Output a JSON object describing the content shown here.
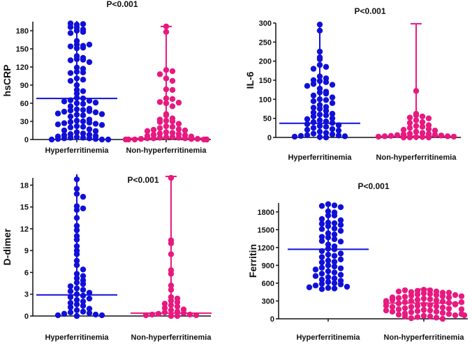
{
  "chart_data": [
    {
      "type": "scatter",
      "title": "P<0.001",
      "ylabel": "hsCRP",
      "ylim": [
        0,
        195
      ],
      "yticks": [
        "0",
        "30",
        "60",
        "90",
        "120",
        "150",
        "180"
      ],
      "yticks_values": [
        0,
        30,
        60,
        90,
        120,
        150,
        180
      ],
      "categories": [
        "Hyperferritinemia",
        "Non-hyperferritinemia"
      ],
      "series": [
        {
          "name": "Hyperferritinemia",
          "color": "#1010d8",
          "median": 68,
          "range": [
            0,
            196
          ],
          "values": [
            185,
            190,
            191,
            192,
            180,
            178,
            182,
            186,
            176,
            163,
            157,
            155,
            151,
            152,
            154,
            157,
            138,
            135,
            133,
            132,
            131,
            128,
            119,
            117,
            112,
            111,
            110,
            101,
            99,
            97,
            90,
            82,
            80,
            76,
            69,
            68,
            65,
            64,
            63,
            61,
            60,
            59,
            55,
            51,
            50,
            49,
            48,
            47,
            46,
            45,
            43,
            42,
            41,
            40,
            38,
            33,
            31,
            30,
            29,
            28,
            27,
            26,
            25,
            24,
            22,
            21,
            20,
            17,
            15,
            14,
            12,
            10,
            9,
            8,
            7,
            6,
            5,
            4,
            3,
            3,
            2,
            2,
            1,
            1,
            0,
            0,
            0
          ]
        },
        {
          "name": "Non-hyperferritinemia",
          "color": "#e8197f",
          "median": 2,
          "range": [
            0,
            187
          ],
          "values": [
            187,
            178,
            115,
            113,
            108,
            101,
            97,
            83,
            82,
            68,
            67,
            62,
            61,
            60,
            55,
            42,
            40,
            35,
            33,
            31,
            30,
            29,
            26,
            22,
            21,
            19,
            17,
            16,
            15,
            14,
            12,
            11,
            10,
            9,
            8,
            7,
            6,
            5,
            4,
            4,
            3,
            3,
            2,
            2,
            2,
            1,
            1,
            1,
            0,
            0,
            0,
            0,
            0,
            0
          ]
        }
      ]
    },
    {
      "type": "scatter",
      "title": "P<0.001",
      "ylabel": "IL-6",
      "ylim": [
        0,
        300
      ],
      "yticks": [
        "0",
        "50",
        "100",
        "150",
        "200",
        "250",
        "300"
      ],
      "yticks_values": [
        0,
        50,
        100,
        150,
        200,
        250,
        300
      ],
      "categories": [
        "Hyperferritinemia",
        "Non-hyperferritinemia"
      ],
      "series": [
        {
          "name": "Hyperferritinemia",
          "color": "#1010d8",
          "median": 37,
          "range": [
            0,
            298
          ],
          "values": [
            296,
            280,
            225,
            210,
            205,
            190,
            185,
            180,
            160,
            155,
            150,
            148,
            145,
            140,
            138,
            135,
            128,
            120,
            118,
            115,
            110,
            105,
            100,
            98,
            95,
            90,
            85,
            80,
            78,
            75,
            70,
            65,
            62,
            60,
            58,
            55,
            50,
            48,
            45,
            42,
            40,
            38,
            35,
            32,
            30,
            28,
            25,
            22,
            20,
            18,
            15,
            12,
            10,
            8,
            6,
            5,
            4,
            3,
            2,
            1,
            0
          ]
        },
        {
          "name": "Non-hyperferritinemia",
          "color": "#e8197f",
          "median": 3,
          "range": [
            0,
            298
          ],
          "values": [
            122,
            62,
            58,
            55,
            52,
            50,
            45,
            40,
            38,
            32,
            30,
            28,
            25,
            22,
            20,
            18,
            15,
            12,
            10,
            9,
            8,
            7,
            6,
            5,
            4,
            3,
            3,
            2,
            2,
            1,
            1,
            0,
            0,
            0
          ]
        }
      ]
    },
    {
      "type": "scatter",
      "title": "P<0.001",
      "ylabel": "D-dimer",
      "ylim": [
        0,
        19
      ],
      "yticks": [
        "0",
        "3",
        "6",
        "9",
        "12",
        "15",
        "18"
      ],
      "yticks_values": [
        0,
        3,
        6,
        9,
        12,
        15,
        18
      ],
      "categories": [
        "Hyperferritinemia",
        "Non-hyperferritinemia"
      ],
      "series": [
        {
          "name": "Hyperferritinemia",
          "color": "#1010d8",
          "median": 2.9,
          "range": [
            0,
            19.5
          ],
          "values": [
            18.8,
            17.5,
            16.8,
            16.4,
            15.1,
            14.8,
            14.6,
            13.5,
            12.4,
            11.8,
            11.0,
            10.5,
            9.6,
            9.0,
            8.5,
            7.6,
            7.0,
            6.4,
            5.8,
            5.5,
            5.2,
            4.9,
            4.6,
            4.4,
            4.1,
            3.8,
            3.6,
            3.4,
            3.2,
            3.0,
            2.8,
            2.6,
            2.4,
            2.2,
            2.0,
            1.8,
            1.6,
            1.4,
            1.2,
            1.0,
            0.8,
            0.6,
            0.5,
            0.4,
            0.3,
            0.2,
            0.1,
            0.1,
            0
          ]
        },
        {
          "name": "Non-hyperferritinemia",
          "color": "#e8197f",
          "median": 0.4,
          "range": [
            0,
            19.2
          ],
          "values": [
            19.0,
            10.4,
            10.0,
            8.5,
            6.3,
            5.8,
            4.2,
            3.6,
            2.6,
            2.4,
            2.1,
            1.9,
            1.7,
            1.5,
            1.3,
            1.1,
            0.9,
            0.8,
            0.6,
            0.5,
            0.4,
            0.3,
            0.2,
            0.2,
            0.1,
            0.1,
            0,
            0
          ]
        }
      ]
    },
    {
      "type": "scatter",
      "title": "P<0.001",
      "ylabel": "Ferritin",
      "ylim": [
        0,
        1950
      ],
      "yticks": [
        "0",
        "300",
        "600",
        "900",
        "1200",
        "1500",
        "1800"
      ],
      "yticks_values": [
        0,
        300,
        600,
        900,
        1200,
        1500,
        1800
      ],
      "categories": [
        "Hyperferritinemia",
        "Non-hyperferritinemia"
      ],
      "series": [
        {
          "name": "Hyperferritinemia",
          "color": "#1010d8",
          "median": 1170,
          "range": [
            500,
            1960
          ],
          "values": [
            1930,
            1910,
            1900,
            1880,
            1810,
            1790,
            1740,
            1740,
            1680,
            1660,
            1620,
            1610,
            1600,
            1580,
            1560,
            1520,
            1510,
            1480,
            1440,
            1420,
            1380,
            1370,
            1340,
            1310,
            1300,
            1250,
            1220,
            1180,
            1170,
            1140,
            1100,
            1080,
            1060,
            1040,
            1000,
            980,
            960,
            950,
            900,
            880,
            860,
            850,
            830,
            800,
            780,
            760,
            740,
            720,
            700,
            680,
            660,
            640,
            620,
            600,
            590,
            580,
            560,
            540,
            530,
            520,
            510,
            500
          ]
        },
        {
          "name": "Non-hyperferritinemia",
          "color": "#e8197f",
          "median": 265,
          "range": [
            0,
            500
          ],
          "values": [
            490,
            480,
            470,
            460,
            450,
            440,
            430,
            420,
            410,
            400,
            390,
            380,
            370,
            360,
            350,
            340,
            330,
            320,
            310,
            300,
            290,
            280,
            270,
            260,
            250,
            240,
            230,
            220,
            210,
            200,
            190,
            180,
            170,
            160,
            150,
            140,
            130,
            120,
            110,
            100,
            90,
            80,
            70,
            60,
            50,
            40,
            30,
            20,
            10,
            0,
            480,
            440,
            400,
            360,
            320,
            280,
            240,
            200,
            160,
            120,
            80,
            40,
            460,
            380,
            300,
            220,
            140,
            60
          ]
        }
      ]
    }
  ]
}
